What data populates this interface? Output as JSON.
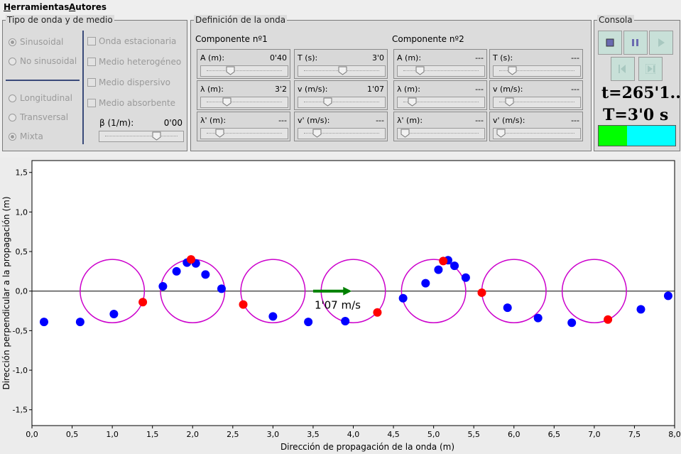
{
  "menu": {
    "tools": "Herramientas",
    "authors": "Autores"
  },
  "medium": {
    "title": "Tipo de onda y de medio",
    "wave_types": [
      {
        "label": "Sinusoidal",
        "selected": true
      },
      {
        "label": "No sinusoidal",
        "selected": false
      }
    ],
    "polarization": [
      {
        "label": "Longitudinal",
        "selected": false
      },
      {
        "label": "Transversal",
        "selected": false
      },
      {
        "label": "Mixta",
        "selected": true
      }
    ],
    "options": [
      "Onda estacionaria",
      "Medio heterogéneo",
      "Medio dispersivo",
      "Medio absorbente"
    ],
    "beta": {
      "label": "β (1/m):",
      "value": "0'00",
      "level": 0.7
    }
  },
  "wave": {
    "title": "Definición de la onda",
    "components": [
      {
        "title": "Componente nº1",
        "params": [
          {
            "name": "A (m):",
            "value": "0'40",
            "level": 0.3
          },
          {
            "name": "T (s):",
            "value": "3'0",
            "level": 0.5
          },
          {
            "name": "λ (m):",
            "value": "3'2",
            "level": 0.25
          },
          {
            "name": "v (m/s):",
            "value": "1'07",
            "level": 0.3
          },
          {
            "name": "λ' (m):",
            "value": "---",
            "level": 0.15
          },
          {
            "name": "v' (m/s):",
            "value": "---",
            "level": 0.15
          }
        ]
      },
      {
        "title": "Componente nº2",
        "params": [
          {
            "name": "A (m):",
            "value": "---",
            "level": 0.2
          },
          {
            "name": "T (s):",
            "value": "---",
            "level": 0.15
          },
          {
            "name": "λ (m):",
            "value": "---",
            "level": 0.1
          },
          {
            "name": "v (m/s):",
            "value": "---",
            "level": 0.12
          },
          {
            "name": "λ' (m):",
            "value": "---",
            "level": 0.0
          },
          {
            "name": "v' (m/s):",
            "value": "---",
            "level": 0.0
          }
        ]
      }
    ]
  },
  "console": {
    "title": "Consola",
    "time": "t=265'1...",
    "period": "T=3'0 s",
    "progress": 0.37,
    "progress_color": "#00ff00",
    "progress_bg": "#00ffff"
  },
  "chart_data": {
    "type": "scatter",
    "xlabel": "Dirección de propagación de la onda (m)",
    "ylabel": "Dirección perpendicular a la propagación (m)",
    "xlim": [
      0.0,
      8.0
    ],
    "ylim": [
      -1.7,
      1.65
    ],
    "xticks": [
      "0,0",
      "0,5",
      "1,0",
      "1,5",
      "2,0",
      "2,5",
      "3,0",
      "3,5",
      "4,0",
      "4,5",
      "5,0",
      "5,5",
      "6,0",
      "6,5",
      "7,0",
      "7,5",
      "8,0"
    ],
    "yticks": [
      {
        "v": 1.5,
        "label": "1,5"
      },
      {
        "v": 1.0,
        "label": "1,0"
      },
      {
        "v": 0.5,
        "label": "0,5"
      },
      {
        "v": 0.0,
        "label": "0,0"
      },
      {
        "v": -0.5,
        "label": "-0,5"
      },
      {
        "v": -1.0,
        "label": "-1,0"
      },
      {
        "v": -1.5,
        "label": "-1,5"
      }
    ],
    "circles": {
      "centers_x": [
        1.0,
        2.0,
        3.0,
        4.0,
        5.0,
        6.0,
        7.0
      ],
      "radius": 0.4,
      "color": "#cc00cc"
    },
    "blue_points": [
      [
        0.15,
        -0.39
      ],
      [
        0.6,
        -0.39
      ],
      [
        1.02,
        -0.29
      ],
      [
        1.63,
        0.06
      ],
      [
        1.8,
        0.25
      ],
      [
        1.93,
        0.36
      ],
      [
        2.04,
        0.35
      ],
      [
        2.16,
        0.21
      ],
      [
        2.36,
        0.03
      ],
      [
        3.0,
        -0.32
      ],
      [
        3.44,
        -0.39
      ],
      [
        3.9,
        -0.38
      ],
      [
        4.62,
        -0.09
      ],
      [
        4.9,
        0.1
      ],
      [
        5.06,
        0.27
      ],
      [
        5.18,
        0.39
      ],
      [
        5.26,
        0.32
      ],
      [
        5.4,
        0.17
      ],
      [
        5.92,
        -0.21
      ],
      [
        6.3,
        -0.34
      ],
      [
        6.72,
        -0.4
      ],
      [
        7.58,
        -0.23
      ],
      [
        7.92,
        -0.06
      ]
    ],
    "red_points": [
      [
        1.38,
        -0.14
      ],
      [
        1.98,
        0.4
      ],
      [
        2.63,
        -0.17
      ],
      [
        4.3,
        -0.27
      ],
      [
        5.12,
        0.38
      ],
      [
        5.6,
        -0.02
      ],
      [
        7.17,
        -0.36
      ]
    ],
    "velocity": {
      "label": "1'07 m/s",
      "x0": 3.5,
      "x1": 3.98,
      "y": 0.0,
      "color": "#008000"
    }
  }
}
